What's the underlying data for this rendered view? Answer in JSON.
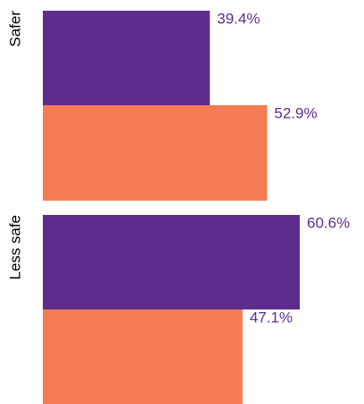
{
  "chart_data": {
    "type": "bar",
    "orientation": "horizontal",
    "categories": [
      "Safer",
      "Less safe"
    ],
    "series": [
      {
        "color": "#5c2d8d",
        "values": [
          39.4,
          60.6
        ],
        "value_labels": [
          "39.4%",
          "60.6%"
        ]
      },
      {
        "color": "#f47c53",
        "values": [
          52.9,
          47.1
        ],
        "value_labels": [
          "52.9%",
          "47.1%"
        ]
      }
    ],
    "label_color": "#5c2d8d"
  }
}
